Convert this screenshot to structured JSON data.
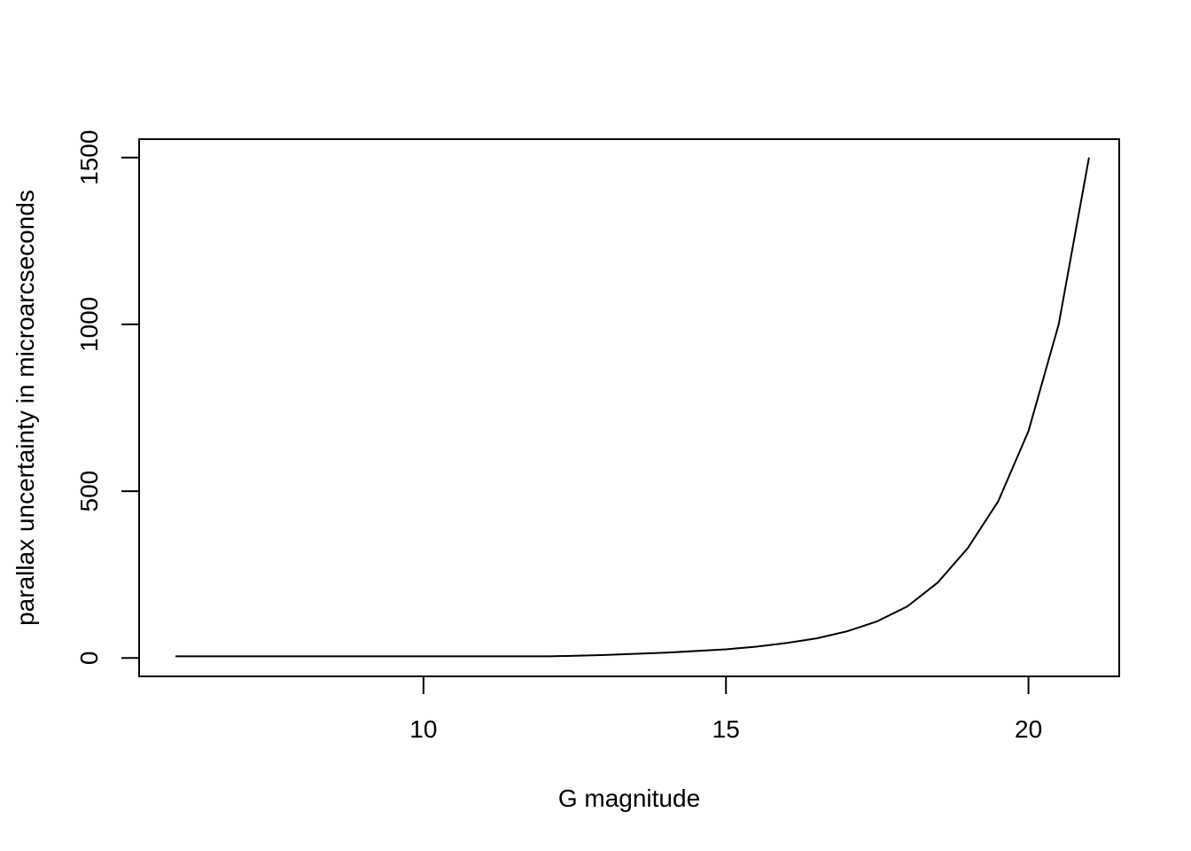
{
  "chart_data": {
    "type": "line",
    "title": "",
    "xlabel": "G magnitude",
    "ylabel": "parallax uncertainty in microarcseconds",
    "xlim": [
      5.3,
      21.5
    ],
    "ylim": [
      -55,
      1555
    ],
    "x_ticks": [
      10,
      15,
      20
    ],
    "x_tick_labels": [
      "10",
      "15",
      "20"
    ],
    "y_ticks": [
      0,
      500,
      1000,
      1500
    ],
    "y_tick_labels": [
      "0",
      "500",
      "1000",
      "1500"
    ],
    "grid": false,
    "legend": "none",
    "series": [
      {
        "name": "parallax uncertainty",
        "x": [
          5.9,
          7.0,
          8.0,
          9.0,
          10.0,
          11.0,
          12.1,
          13.0,
          14.0,
          15.0,
          15.5,
          16.0,
          16.5,
          17.0,
          17.5,
          18.0,
          18.5,
          19.0,
          19.5,
          20.0,
          20.5,
          21.0
        ],
        "y": [
          5,
          5,
          5,
          5,
          5,
          5,
          5,
          9,
          16,
          26,
          34,
          45,
          59,
          80,
          110,
          155,
          226,
          330,
          470,
          680,
          1000,
          1500
        ]
      }
    ]
  }
}
